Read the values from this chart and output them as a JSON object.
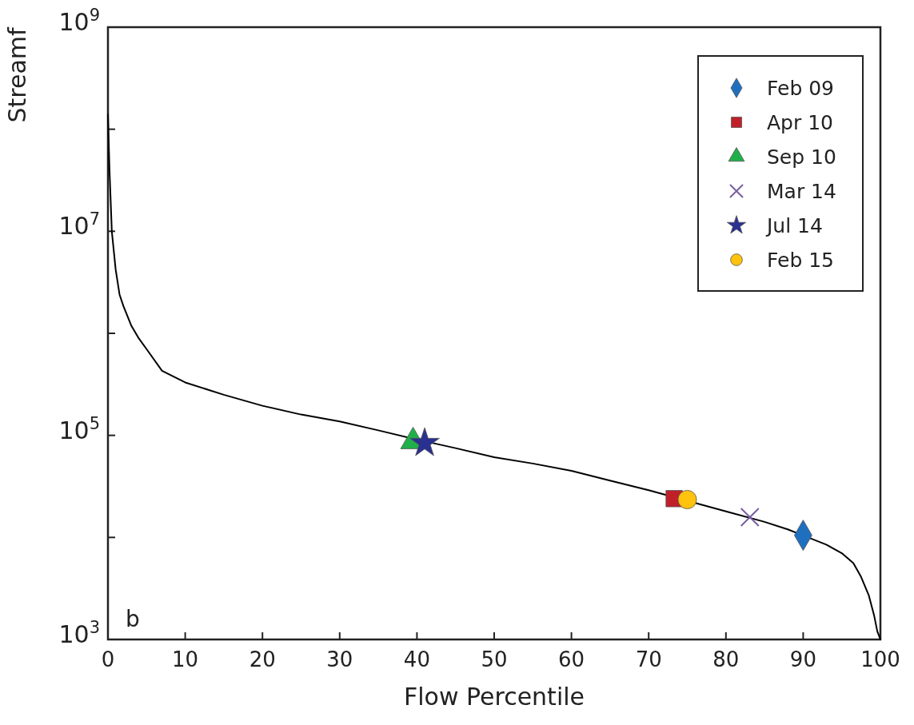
{
  "chart_data": {
    "type": "scatter",
    "xlabel": "Flow Percentile",
    "ylabel": "Streamf",
    "log": "y",
    "xlim": [
      0,
      100
    ],
    "ylim": [
      1000,
      1000000000
    ],
    "xticks": [
      0,
      10,
      20,
      30,
      40,
      50,
      60,
      70,
      80,
      90,
      100
    ],
    "yticks": [
      {
        "value": 1000,
        "label": "10$^{3}$"
      },
      {
        "value": 10000,
        "label": null
      },
      {
        "value": 100000,
        "label": "10$^{5}$"
      },
      {
        "value": 1000000,
        "label": null
      },
      {
        "value": 10000000,
        "label": "10$^{7}$"
      },
      {
        "value": 100000000,
        "label": null
      },
      {
        "value": 1000000000,
        "label": "10$^{9}$"
      }
    ],
    "grid": false,
    "legend": "top right",
    "annotations": [
      "b"
    ],
    "series": [
      {
        "type": "line",
        "color": "#000000",
        "marker": "none",
        "line_style": "solid",
        "x": [
          0,
          0.2,
          0.5,
          1,
          1.5,
          2,
          3,
          4,
          5,
          7,
          10,
          15,
          20,
          25,
          30,
          35,
          40,
          45,
          50,
          55,
          60,
          65,
          70,
          80,
          85,
          88,
          93,
          95,
          96.5,
          97.5,
          98.5,
          99.2,
          99.6,
          100
        ],
        "values": [
          140000000,
          40000000,
          10000000,
          4200000,
          2400000,
          1850000,
          1200000,
          890000,
          700000,
          430000,
          330000,
          250000,
          195000,
          160000,
          137000,
          112000,
          91000,
          75000,
          61000,
          53000,
          45000,
          36000,
          29000,
          18000,
          14200,
          12000,
          8500,
          7000,
          5600,
          4100,
          2700,
          1700,
          1200,
          1000
        ]
      },
      {
        "name": "Feb 09",
        "color": "#1f6fbf",
        "marker": "diamond",
        "x": [
          90
        ],
        "values": [
          10500
        ]
      },
      {
        "name": "Apr 10",
        "color": "#c0202a",
        "marker": "square",
        "x": [
          73.3
        ],
        "values": [
          24000
        ]
      },
      {
        "name": "Sep 10",
        "color": "#20b04a",
        "marker": "triangle",
        "x": [
          39.5
        ],
        "values": [
          87000
        ]
      },
      {
        "name": "Mar 14",
        "color": "#7a5fa0",
        "marker": "cross",
        "x": [
          83.1
        ],
        "values": [
          15800
        ]
      },
      {
        "name": "Jul 14",
        "color": "#2a3090",
        "marker": "star",
        "x": [
          41
        ],
        "values": [
          84000
        ]
      },
      {
        "name": "Feb 15",
        "color": "#ffc20e",
        "marker": "circle",
        "x": [
          75
        ],
        "values": [
          23500
        ]
      }
    ]
  }
}
